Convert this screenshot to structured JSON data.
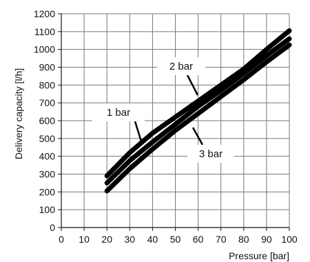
{
  "chart_data": {
    "type": "line",
    "title": "",
    "xlabel": "Pressure [bar]",
    "ylabel": "Delivery capacity [l/h]",
    "xlim": [
      0,
      100
    ],
    "ylim": [
      0,
      1200
    ],
    "xticks": [
      0,
      10,
      20,
      30,
      40,
      50,
      60,
      70,
      80,
      90,
      100
    ],
    "yticks": [
      0,
      100,
      200,
      300,
      400,
      500,
      600,
      700,
      800,
      900,
      1000,
      1100,
      1200
    ],
    "grid": true,
    "series_color": "#000000",
    "series": [
      {
        "label": "1 bar",
        "x": [
          20,
          30,
          40,
          50,
          60,
          70,
          80,
          90,
          100
        ],
        "y": [
          290,
          420,
          530,
          620,
          710,
          800,
          890,
          1000,
          1105
        ]
      },
      {
        "label": "2 bar",
        "x": [
          20,
          30,
          40,
          50,
          60,
          70,
          80,
          90,
          100
        ],
        "y": [
          250,
          375,
          480,
          580,
          680,
          770,
          865,
          965,
          1060
        ]
      },
      {
        "label": "3 bar",
        "x": [
          20,
          30,
          40,
          50,
          60,
          70,
          80,
          90,
          100
        ],
        "y": [
          205,
          330,
          440,
          545,
          640,
          735,
          830,
          930,
          1025
        ]
      }
    ]
  }
}
